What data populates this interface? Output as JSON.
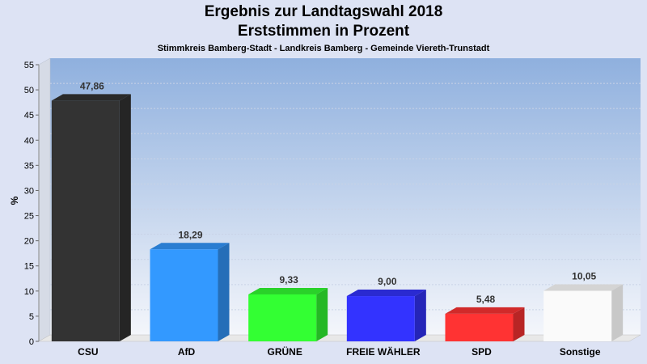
{
  "title": "Ergebnis zur Landtagswahl 2018",
  "subtitle": "Erststimmen in Prozent",
  "subtitle2": "Stimmkreis Bamberg-Stadt - Landkreis Bamberg - Gemeinde Viereth-Trunstadt",
  "chart_data": {
    "type": "bar",
    "title": "Ergebnis zur Landtagswahl 2018",
    "subtitle": "Erststimmen in Prozent",
    "ylabel": "%",
    "xlabel": "",
    "ylim": [
      0,
      55
    ],
    "yticks": [
      0,
      5,
      10,
      15,
      20,
      25,
      30,
      35,
      40,
      45,
      50,
      55
    ],
    "grid": true,
    "legend": "none",
    "categories": [
      "CSU",
      "AfD",
      "GRÜNE",
      "FREIE WÄHLER",
      "SPD",
      "Sonstige"
    ],
    "values": [
      47.86,
      18.29,
      9.33,
      9.0,
      5.48,
      10.05
    ],
    "value_labels": [
      "47,86",
      "18,29",
      "9,33",
      "9,00",
      "5,48",
      "10,05"
    ],
    "colors": [
      "#333333",
      "#3399ff",
      "#33ff33",
      "#3333ff",
      "#ff3333",
      "#ffffff"
    ]
  }
}
